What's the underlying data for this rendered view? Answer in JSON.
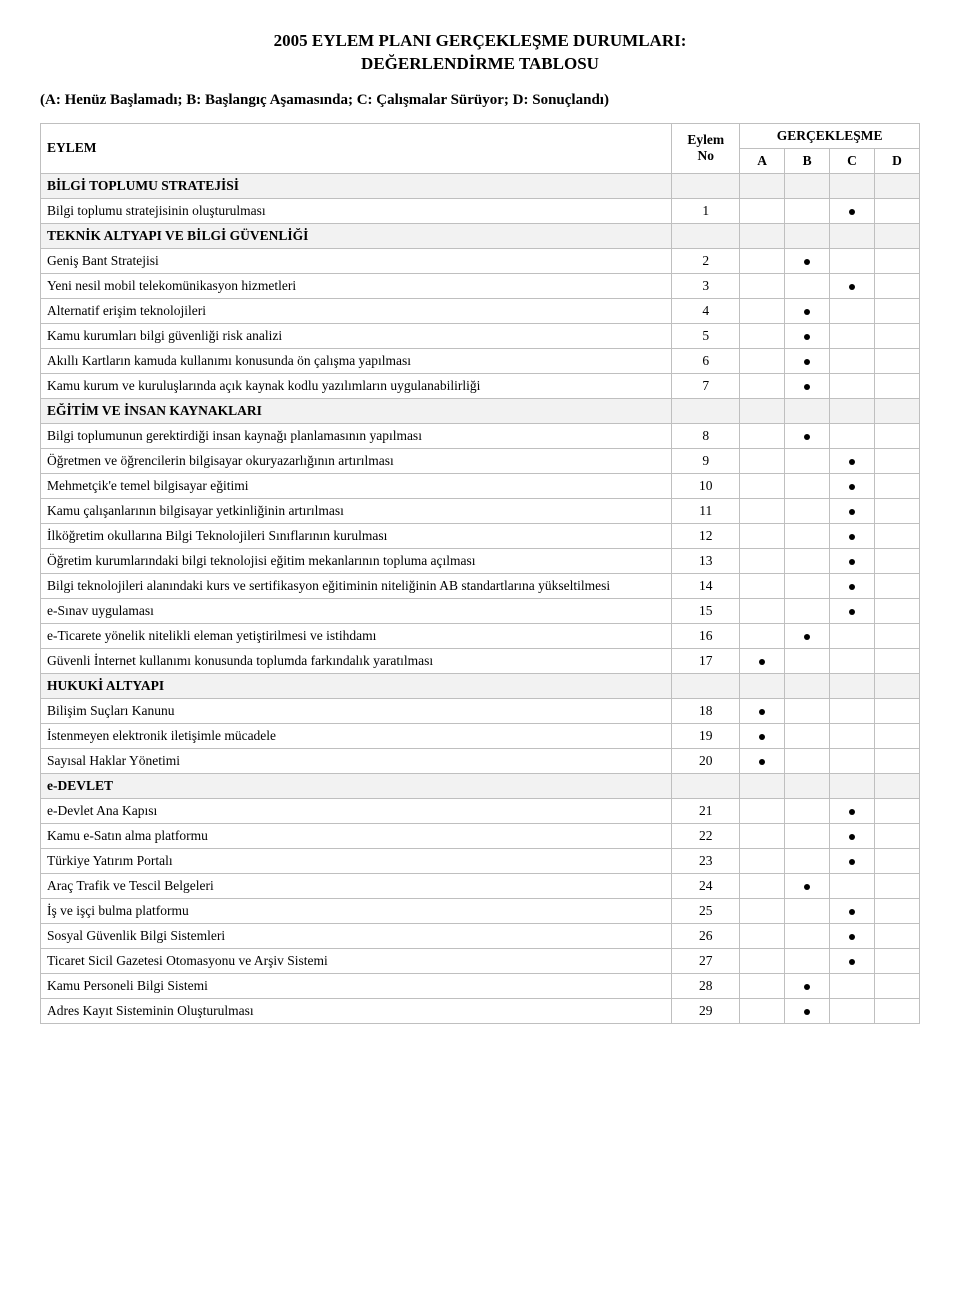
{
  "title_line1": "2005 EYLEM PLANI GERÇEKLEŞME DURUMLARI:",
  "title_line2": "DEĞERLENDİRME TABLOSU",
  "legend": "(A: Henüz Başlamadı; B: Başlangıç Aşamasında; C: Çalışmalar Sürüyor; D: Sonuçlandı)",
  "headers": {
    "eylem": "EYLEM",
    "eylem_no": "Eylem No",
    "gerceklesme": "GERÇEKLEŞME",
    "a": "A",
    "b": "B",
    "c": "C",
    "d": "D"
  },
  "rows": [
    {
      "type": "section",
      "label": "BİLGİ TOPLUMU STRATEJİSİ"
    },
    {
      "type": "item",
      "label": "Bilgi toplumu stratejisinin oluşturulması",
      "no": "1",
      "mark": "C"
    },
    {
      "type": "section",
      "label": "TEKNİK ALTYAPI VE BİLGİ GÜVENLİĞİ"
    },
    {
      "type": "item",
      "label": "Geniş Bant Stratejisi",
      "no": "2",
      "mark": "B"
    },
    {
      "type": "item",
      "label": "Yeni nesil mobil telekomünikasyon hizmetleri",
      "no": "3",
      "mark": "C"
    },
    {
      "type": "item",
      "label": "Alternatif  erişim teknolojileri",
      "no": "4",
      "mark": "B"
    },
    {
      "type": "item",
      "label": "Kamu kurumları bilgi güvenliği risk analizi",
      "no": "5",
      "mark": "B"
    },
    {
      "type": "item",
      "label": "Akıllı Kartların kamuda kullanımı konusunda ön çalışma yapılması",
      "no": "6",
      "mark": "B"
    },
    {
      "type": "item",
      "label": "Kamu kurum ve kuruluşlarında açık kaynak kodlu yazılımların uygulanabilirliği",
      "no": "7",
      "mark": "B"
    },
    {
      "type": "section",
      "label": "EĞİTİM VE İNSAN KAYNAKLARI"
    },
    {
      "type": "item",
      "label": "Bilgi toplumunun gerektirdiği insan kaynağı planlamasının yapılması",
      "no": "8",
      "mark": "B"
    },
    {
      "type": "item",
      "label": "Öğretmen ve öğrencilerin bilgisayar okuryazarlığının artırılması",
      "no": "9",
      "mark": "C"
    },
    {
      "type": "item",
      "label": "Mehmetçik'e temel bilgisayar eğitimi",
      "no": "10",
      "mark": "C"
    },
    {
      "type": "item",
      "label": "Kamu çalışanlarının bilgisayar yetkinliğinin artırılması",
      "no": "11",
      "mark": "C"
    },
    {
      "type": "item",
      "label": "İlköğretim okullarına Bilgi Teknolojileri Sınıflarının kurulması",
      "no": "12",
      "mark": "C"
    },
    {
      "type": "item",
      "label": "Öğretim kurumlarındaki bilgi teknolojisi eğitim mekanlarının topluma açılması",
      "no": "13",
      "mark": "C"
    },
    {
      "type": "item",
      "label": "Bilgi teknolojileri alanındaki kurs ve sertifikasyon eğitiminin niteliğinin AB standartlarına yükseltilmesi",
      "no": "14",
      "mark": "C"
    },
    {
      "type": "item",
      "label": "e-Sınav uygulaması",
      "no": "15",
      "mark": "C"
    },
    {
      "type": "item",
      "label": "e-Ticarete yönelik nitelikli eleman yetiştirilmesi ve istihdamı",
      "no": "16",
      "mark": "B"
    },
    {
      "type": "item",
      "label": "Güvenli İnternet kullanımı konusunda toplumda farkındalık yaratılması",
      "no": "17",
      "mark": "A"
    },
    {
      "type": "section",
      "label": "HUKUKİ ALTYAPI"
    },
    {
      "type": "item",
      "label": "Bilişim Suçları Kanunu",
      "no": "18",
      "mark": "A"
    },
    {
      "type": "item",
      "label": "İstenmeyen elektronik iletişimle mücadele",
      "no": "19",
      "mark": "A"
    },
    {
      "type": "item",
      "label": "Sayısal Haklar Yönetimi",
      "no": "20",
      "mark": "A"
    },
    {
      "type": "section",
      "label": "e-DEVLET"
    },
    {
      "type": "item",
      "label": "e-Devlet Ana Kapısı",
      "no": "21",
      "mark": "C"
    },
    {
      "type": "item",
      "label": "Kamu e-Satın alma platformu",
      "no": "22",
      "mark": "C"
    },
    {
      "type": "item",
      "label": "Türkiye Yatırım Portalı",
      "no": "23",
      "mark": "C"
    },
    {
      "type": "item",
      "label": "Araç Trafik ve Tescil Belgeleri",
      "no": "24",
      "mark": "B"
    },
    {
      "type": "item",
      "label": "İş ve işçi bulma platformu",
      "no": "25",
      "mark": "C"
    },
    {
      "type": "item",
      "label": "Sosyal Güvenlik Bilgi Sistemleri",
      "no": "26",
      "mark": "C"
    },
    {
      "type": "item",
      "label": "Ticaret Sicil Gazetesi Otomasyonu ve Arşiv Sistemi",
      "no": "27",
      "mark": "C"
    },
    {
      "type": "item",
      "label": "Kamu Personeli Bilgi Sistemi",
      "no": "28",
      "mark": "B"
    },
    {
      "type": "item",
      "label": "Adres Kayıt Sisteminin Oluşturulması",
      "no": "29",
      "mark": "B"
    }
  ]
}
